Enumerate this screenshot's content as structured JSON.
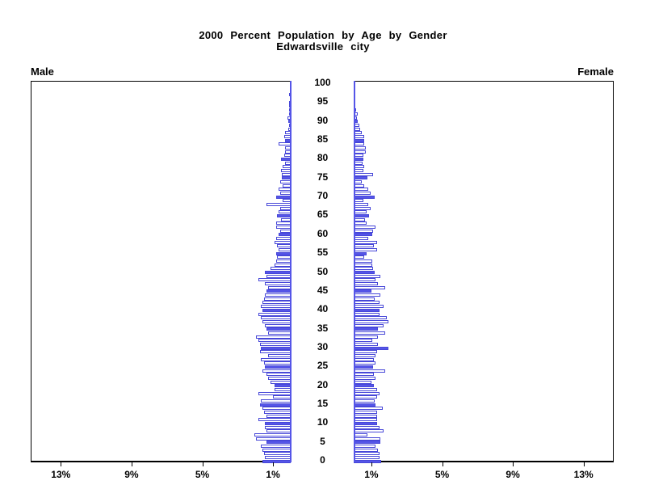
{
  "title": {
    "line1": "2000 Percent Population by Age by Gender",
    "line2": "Edwardsville city"
  },
  "panels": {
    "male_label": "Male",
    "female_label": "Female"
  },
  "axes": {
    "age_tick_labels": [
      "0",
      "5",
      "10",
      "15",
      "20",
      "25",
      "30",
      "35",
      "40",
      "45",
      "50",
      "55",
      "60",
      "65",
      "70",
      "75",
      "80",
      "85",
      "90",
      "95",
      "100"
    ],
    "male_pct_tick_labels": [
      "13%",
      "9%",
      "5%",
      "1%"
    ],
    "female_pct_tick_labels": [
      "1%",
      "5%",
      "9%",
      "13%"
    ]
  },
  "colors": {
    "bar_fill": "#5555e8",
    "bar_outline": "#4747d8",
    "inner_axis_blue": "#5555e8",
    "frame_black": "#000000"
  },
  "chart_data": {
    "type": "bar",
    "subtype": "population-pyramid",
    "title": "2000 Percent Population by Age by Gender",
    "subtitle": "Edwardsville city",
    "orientation": "horizontal, male bars extend left, female bars extend right",
    "age_axis": {
      "min": 0,
      "max": 100,
      "tick_step": 5,
      "bars_per_year": 1
    },
    "x_axis": {
      "unit": "percent",
      "ticks": [
        1,
        5,
        9,
        13
      ],
      "range": [
        0,
        14.7
      ]
    },
    "style_rule": "ages divisible by 5 are solid filled blue bars; other ages are white bars with blue outline",
    "ages": "0-100 by single year, index of values array = age",
    "series": [
      {
        "name": "Male",
        "values": [
          1.6,
          1.45,
          1.5,
          1.6,
          1.68,
          1.37,
          1.98,
          2.05,
          1.37,
          1.45,
          1.45,
          1.83,
          1.37,
          1.52,
          1.6,
          1.75,
          1.68,
          0.99,
          1.83,
          0.91,
          0.91,
          1.14,
          1.3,
          1.37,
          1.6,
          1.45,
          1.5,
          1.68,
          1.3,
          1.74,
          1.68,
          1.74,
          1.83,
          1.96,
          1.3,
          1.37,
          1.45,
          1.6,
          1.68,
          1.83,
          1.6,
          1.68,
          1.6,
          1.5,
          1.45,
          1.37,
          1.3,
          1.45,
          1.83,
          1.37,
          1.45,
          1.14,
          0.91,
          0.84,
          0.76,
          0.84,
          0.68,
          0.76,
          0.91,
          0.84,
          0.68,
          0.61,
          0.84,
          0.84,
          0.53,
          0.76,
          0.68,
          0.61,
          1.37,
          0.46,
          0.84,
          0.61,
          0.68,
          0.46,
          0.58,
          0.5,
          0.5,
          0.55,
          0.45,
          0.3,
          0.53,
          0.35,
          0.3,
          0.3,
          0.7,
          0.3,
          0.35,
          0.3,
          0.15,
          0.1,
          0.15,
          0.2,
          0.05,
          0.1,
          0.05,
          0.05,
          0,
          0.05,
          0,
          0,
          0
        ]
      },
      {
        "name": "Female",
        "values": [
          1.55,
          1.45,
          1.45,
          1.37,
          1.22,
          1.52,
          1.5,
          0.76,
          1.7,
          1.45,
          1.34,
          1.3,
          1.3,
          1.3,
          1.65,
          1.22,
          1.19,
          1.34,
          1.45,
          1.3,
          1.14,
          0.99,
          1.22,
          1.14,
          1.78,
          1.1,
          1.22,
          1.14,
          1.22,
          1.3,
          1.95,
          1.37,
          1.03,
          1.37,
          1.8,
          1.37,
          1.68,
          1.95,
          1.86,
          1.45,
          1.45,
          1.7,
          1.45,
          1.19,
          1.52,
          0.99,
          1.8,
          1.37,
          1.25,
          1.52,
          1.19,
          1.1,
          1.03,
          1.03,
          0.58,
          0.73,
          1.34,
          1.14,
          1.34,
          0.84,
          1.03,
          1.1,
          1.22,
          0.73,
          0.64,
          0.88,
          0.73,
          0.94,
          0.84,
          0.53,
          1.19,
          0.94,
          0.84,
          0.61,
          0.46,
          0.79,
          1.1,
          0.55,
          0.6,
          0.5,
          0.53,
          0.55,
          0.68,
          0.68,
          0.61,
          0.61,
          0.61,
          0.46,
          0.38,
          0.3,
          0.23,
          0.2,
          0.23,
          0.15,
          0.1,
          0.09,
          0,
          0,
          0,
          0,
          0
        ]
      }
    ],
    "legend": "none",
    "grid": false
  }
}
